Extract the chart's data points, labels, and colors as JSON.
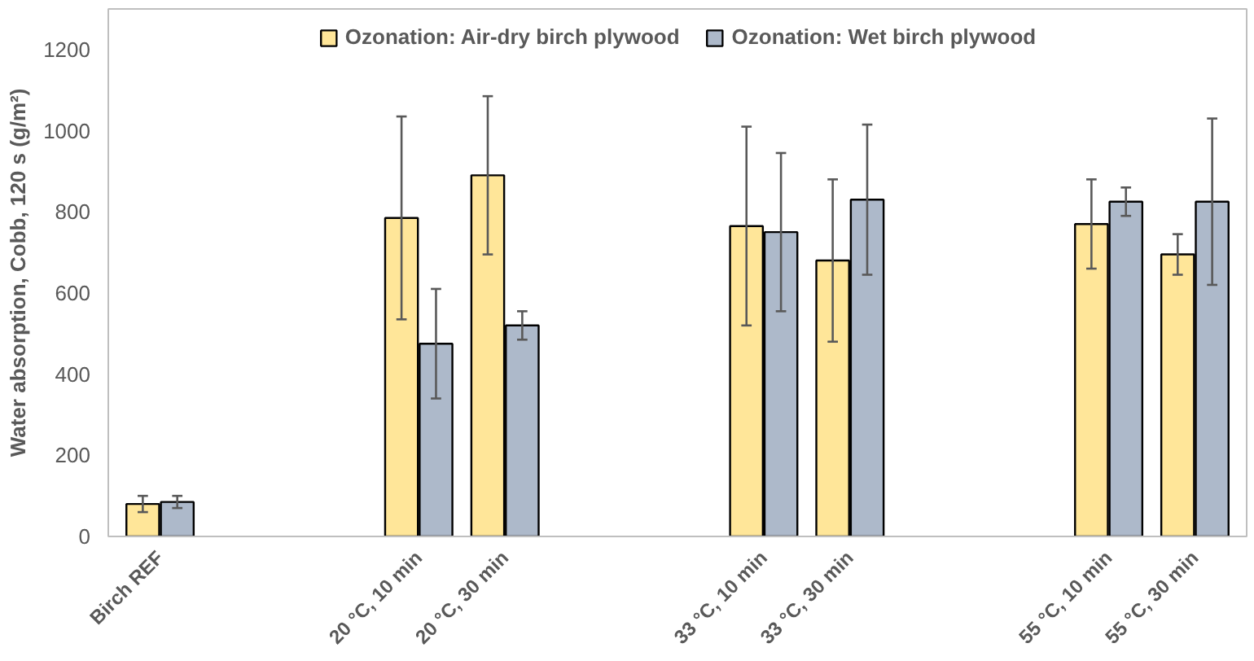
{
  "chart_data": {
    "type": "bar",
    "ylabel": "Water absorption, Cobb, 120 s (g/m²)",
    "categories": [
      "Birch REF",
      null,
      null,
      "20 °C, 10 min",
      "20 °C, 30 min",
      null,
      null,
      "33 °C, 10 min",
      "33 °C, 30 min",
      null,
      null,
      "55 °C, 10 min",
      "55 °C, 30 min"
    ],
    "series": [
      {
        "name": "Ozonation: Air-dry birch plywood",
        "color": "#ffe699",
        "values": [
          80,
          null,
          null,
          785,
          890,
          null,
          null,
          765,
          680,
          null,
          null,
          770,
          695
        ],
        "errors": [
          20,
          null,
          null,
          250,
          195,
          null,
          null,
          245,
          200,
          null,
          null,
          110,
          50
        ]
      },
      {
        "name": "Ozonation: Wet birch plywood",
        "color": "#adb9ca",
        "values": [
          85,
          null,
          null,
          475,
          520,
          null,
          null,
          750,
          830,
          null,
          null,
          825,
          825
        ],
        "errors": [
          15,
          null,
          null,
          135,
          35,
          null,
          null,
          195,
          185,
          null,
          null,
          35,
          205
        ]
      }
    ],
    "ylim": [
      0,
      1300
    ],
    "yticks": [
      0,
      200,
      400,
      600,
      800,
      1000,
      1200
    ],
    "grid": false,
    "legend": "top"
  }
}
